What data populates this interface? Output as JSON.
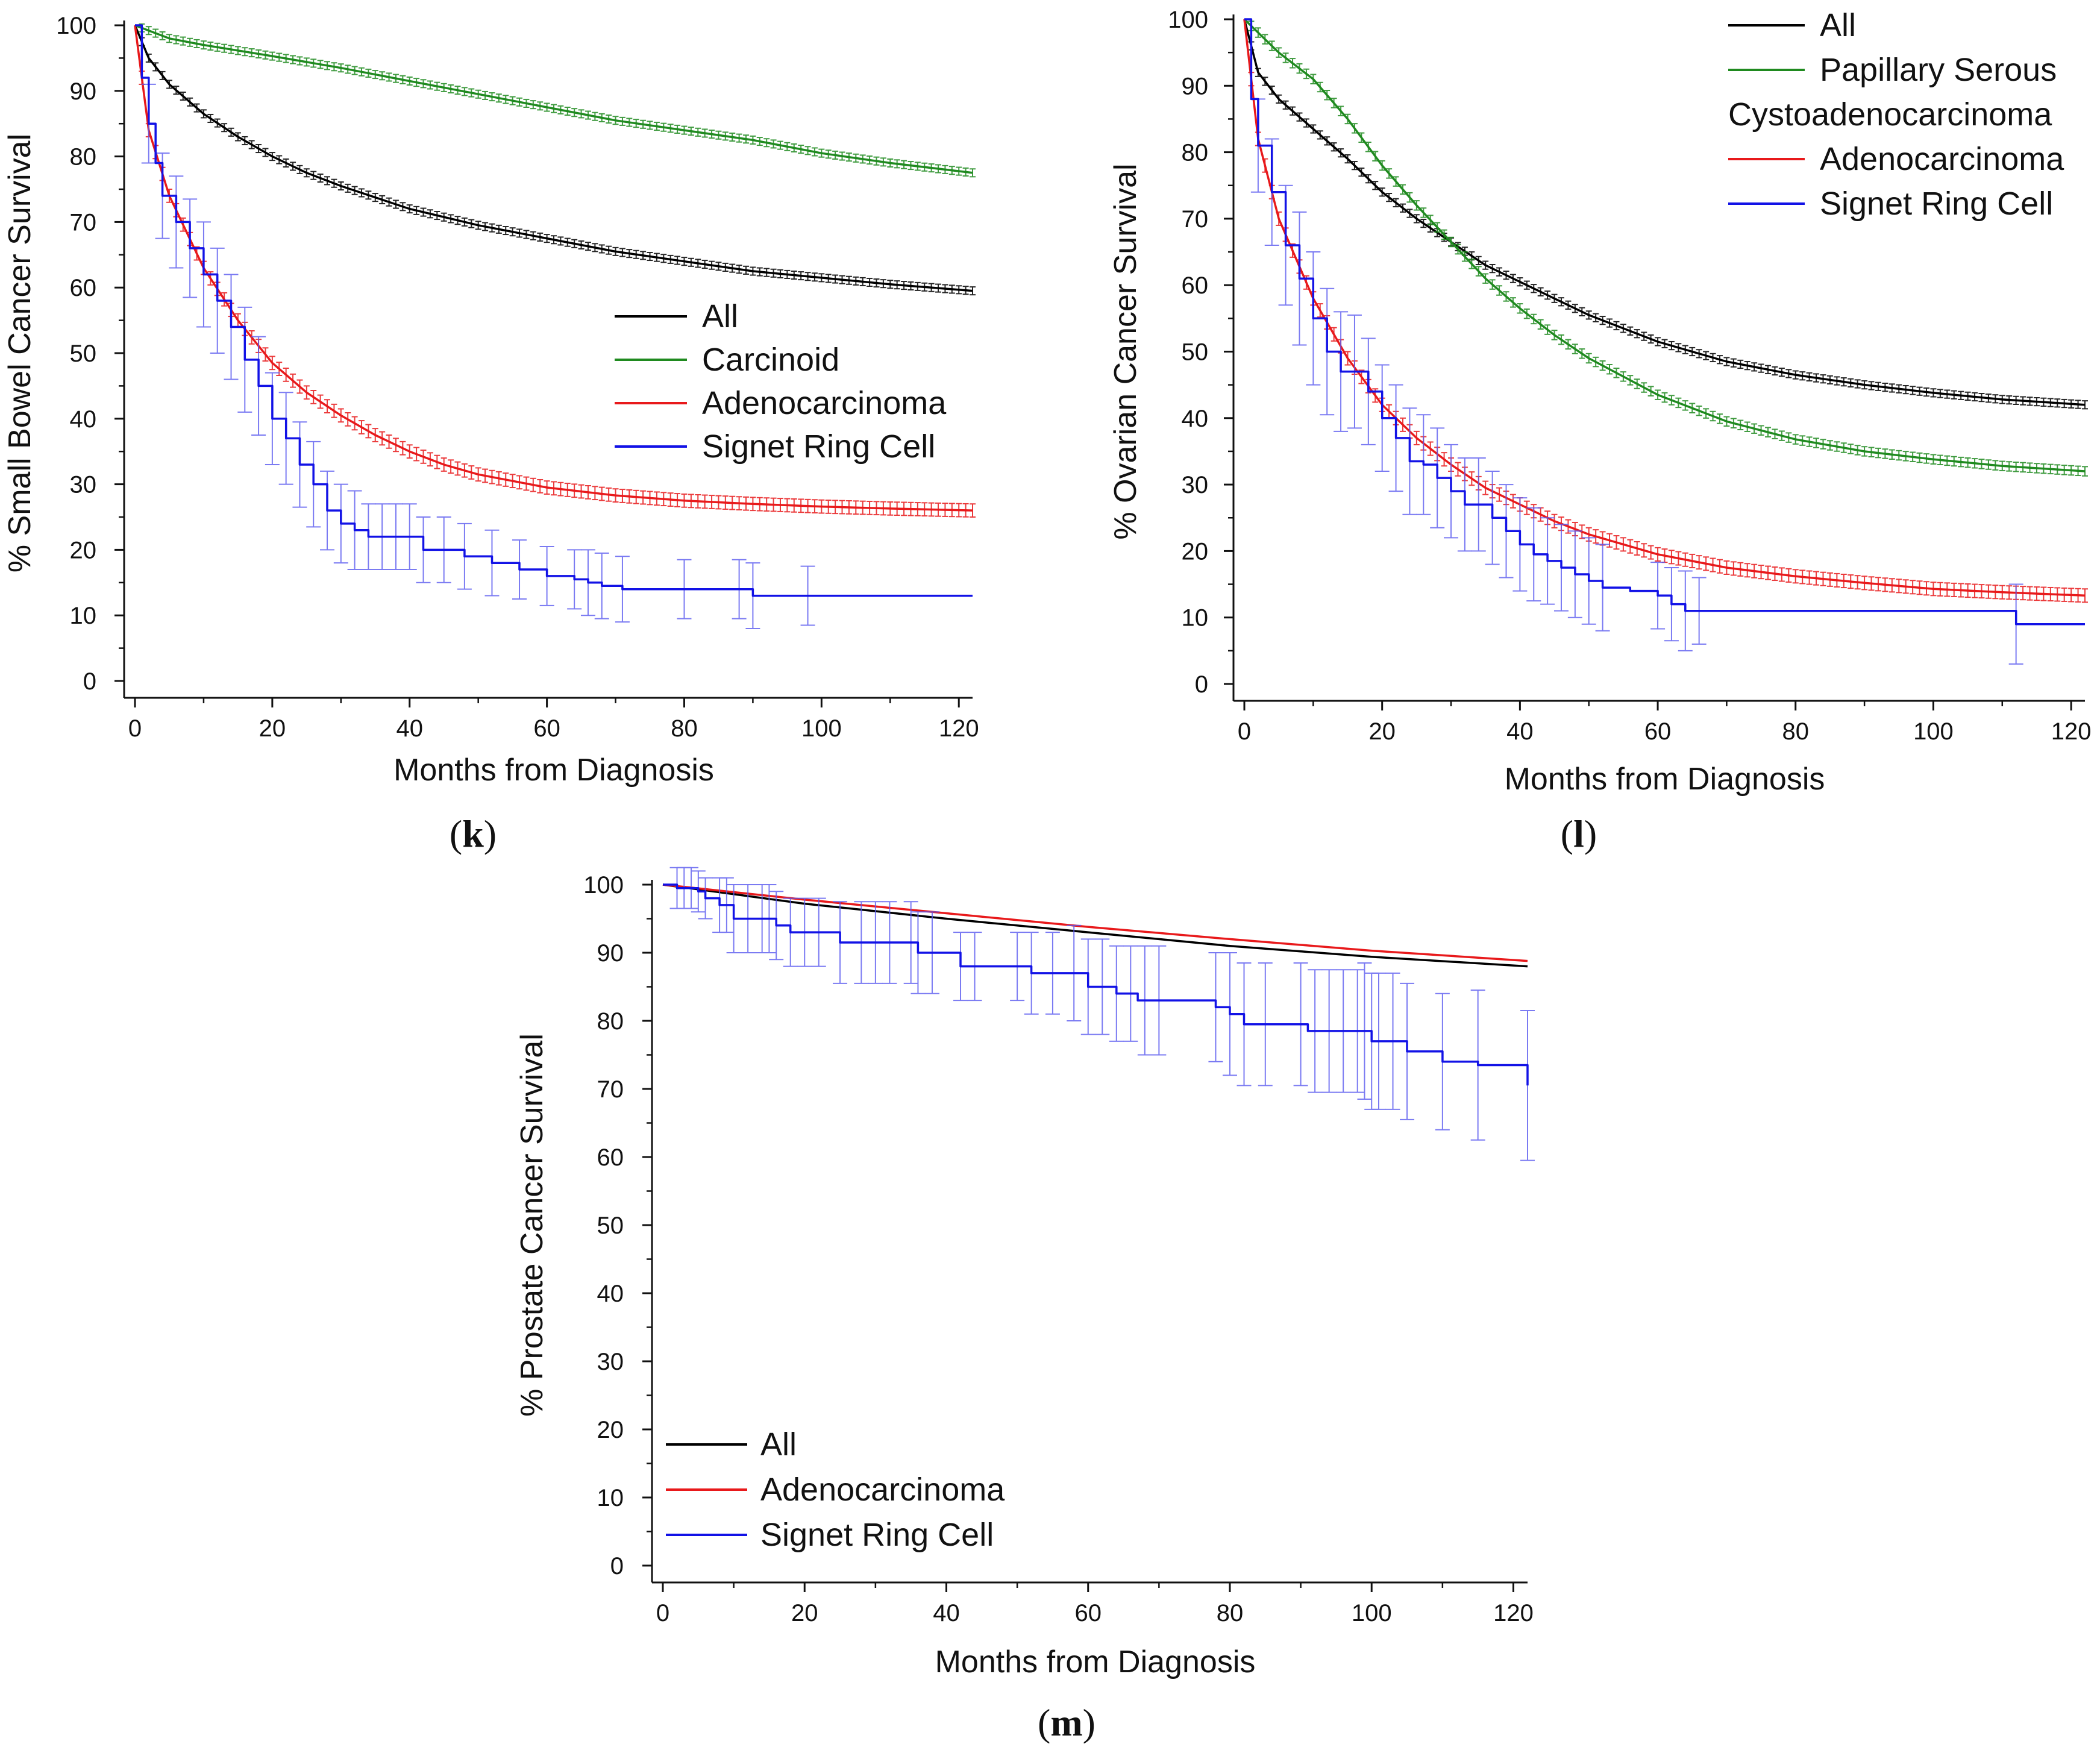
{
  "colors": {
    "All": "#000000",
    "Carcinoid": "#1f8a1f",
    "Papillary Serous Cystoadenocarcinoma": "#1f8a1f",
    "Adenocarcinoma": "#e8191b",
    "Signet Ring Cell": "#1212e6",
    "axis": "#111111"
  },
  "chart_data": [
    {
      "id": "k",
      "type": "line",
      "panel_label": "k",
      "title": "",
      "xlabel": "Months from Diagnosis",
      "ylabel": "% Small Bowel Cancer Survival",
      "xlim": [
        0,
        122
      ],
      "ylim": [
        0,
        100
      ],
      "xticks": [
        0,
        20,
        40,
        60,
        80,
        100,
        120
      ],
      "yticks": [
        0,
        10,
        20,
        30,
        40,
        50,
        60,
        70,
        80,
        90,
        100
      ],
      "legend_position": "center-right",
      "legend": [
        {
          "label": "All",
          "series": "All"
        },
        {
          "label": "Carcinoid",
          "series": "Carcinoid"
        },
        {
          "label": "Adenocarcinoma",
          "series": "Adenocarcinoma"
        },
        {
          "label": "Signet Ring Cell",
          "series": "Signet Ring Cell"
        }
      ],
      "series": [
        {
          "name": "All",
          "step": false,
          "err": 0.6,
          "x": [
            0,
            2,
            5,
            10,
            15,
            20,
            25,
            30,
            40,
            50,
            60,
            70,
            80,
            90,
            100,
            110,
            122
          ],
          "y": [
            100,
            95,
            91,
            86.5,
            83,
            80,
            77.5,
            75.5,
            72,
            69.5,
            67.5,
            65.5,
            64,
            62.5,
            61.5,
            60.5,
            59.5
          ]
        },
        {
          "name": "Carcinoid",
          "step": false,
          "err": 0.6,
          "x": [
            0,
            5,
            10,
            20,
            30,
            40,
            50,
            60,
            70,
            80,
            90,
            100,
            110,
            122
          ],
          "y": [
            100,
            98,
            97,
            95.3,
            93.5,
            91.5,
            89.5,
            87.5,
            85.5,
            84,
            82.5,
            80.5,
            79,
            77.5
          ]
        },
        {
          "name": "Adenocarcinoma",
          "step": false,
          "err": 1.0,
          "x": [
            0,
            2,
            5,
            10,
            15,
            20,
            25,
            30,
            35,
            40,
            45,
            50,
            60,
            70,
            80,
            90,
            100,
            110,
            122
          ],
          "y": [
            100,
            84,
            74,
            63,
            55,
            48.5,
            44,
            40.5,
            37.5,
            35,
            33,
            31.5,
            29.5,
            28.3,
            27.5,
            27,
            26.6,
            26.3,
            26
          ]
        },
        {
          "name": "Signet Ring Cell",
          "step": true,
          "x": [
            0,
            1,
            2,
            3,
            4,
            6,
            8,
            10,
            12,
            14,
            16,
            18,
            20,
            22,
            24,
            26,
            28,
            30,
            32,
            34,
            36,
            40,
            42,
            45,
            48,
            52,
            56,
            60,
            64,
            66,
            68,
            71,
            75,
            80,
            85,
            89,
            90,
            95,
            100,
            122
          ],
          "y": [
            100,
            92,
            85,
            79,
            74,
            70,
            66,
            62,
            58,
            54,
            49,
            45,
            40,
            37,
            33,
            30,
            26,
            24,
            23,
            22,
            22,
            22,
            20,
            20,
            19,
            18,
            17,
            16,
            15.5,
            15,
            14.5,
            14,
            14,
            14,
            14,
            14,
            13,
            13,
            13,
            13
          ],
          "errx": [
            2,
            4,
            6,
            8,
            10,
            12,
            14,
            16,
            18,
            20,
            22,
            24,
            26,
            28,
            30,
            32,
            34,
            36,
            38,
            40,
            42,
            45,
            48,
            52,
            56,
            60,
            64,
            66,
            68,
            71,
            80,
            88,
            90,
            98
          ],
          "erre": [
            6,
            6.5,
            7,
            7.5,
            8,
            8,
            8,
            8,
            7.5,
            7,
            7,
            6.5,
            6.5,
            6,
            6,
            6,
            5,
            5,
            5,
            5,
            5,
            5,
            5,
            5,
            4.5,
            4.5,
            4.5,
            5,
            5,
            5,
            4.5,
            4.5,
            5,
            4.5
          ]
        }
      ]
    },
    {
      "id": "l",
      "type": "line",
      "panel_label": "l",
      "title": "",
      "xlabel": "Months from Diagnosis",
      "ylabel": "% Ovarian Cancer Survival",
      "xlim": [
        0,
        122
      ],
      "ylim": [
        0,
        100
      ],
      "xticks": [
        0,
        20,
        40,
        60,
        80,
        100,
        120
      ],
      "yticks": [
        0,
        10,
        20,
        30,
        40,
        50,
        60,
        70,
        80,
        90,
        100
      ],
      "legend_position": "top-right",
      "legend": [
        {
          "label": "All",
          "series": "All"
        },
        {
          "label": "Papillary Serous",
          "label2": "Cystoadenocarcinoma",
          "series": "Papillary Serous Cystoadenocarcinoma"
        },
        {
          "label": "Adenocarcinoma",
          "series": "Adenocarcinoma"
        },
        {
          "label": "Signet Ring Cell",
          "series": "Signet Ring Cell"
        }
      ],
      "series": [
        {
          "name": "All",
          "step": false,
          "err": 0.6,
          "x": [
            0,
            2,
            5,
            10,
            15,
            20,
            25,
            30,
            35,
            40,
            45,
            50,
            60,
            70,
            80,
            90,
            100,
            110,
            122
          ],
          "y": [
            100,
            92,
            88,
            83.5,
            79,
            74,
            70,
            66.5,
            63,
            60.5,
            58,
            55.5,
            51.5,
            48.5,
            46.5,
            45,
            43.8,
            42.8,
            42
          ]
        },
        {
          "name": "Papillary Serous Cystoadenocarcinoma",
          "step": false,
          "err": 0.7,
          "x": [
            0,
            2,
            5,
            10,
            15,
            20,
            25,
            30,
            35,
            40,
            45,
            50,
            60,
            70,
            80,
            90,
            100,
            110,
            122
          ],
          "y": [
            100,
            98,
            95,
            91,
            85,
            78,
            72,
            66.5,
            61,
            56.5,
            52.5,
            49,
            43.5,
            39.5,
            36.8,
            35,
            33.8,
            32.8,
            32
          ]
        },
        {
          "name": "Adenocarcinoma",
          "step": false,
          "err": 1.0,
          "x": [
            0,
            2,
            5,
            10,
            15,
            20,
            25,
            30,
            35,
            40,
            45,
            50,
            60,
            70,
            80,
            90,
            100,
            110,
            122
          ],
          "y": [
            100,
            82,
            70,
            58,
            49,
            42,
            37,
            33,
            29.5,
            27,
            24.5,
            22.5,
            19.5,
            17.5,
            16.2,
            15.2,
            14.3,
            13.8,
            13.3
          ]
        },
        {
          "name": "Signet Ring Cell",
          "step": true,
          "x": [
            0,
            1,
            2,
            4,
            6,
            8,
            10,
            12,
            14,
            18,
            20,
            22,
            24,
            26,
            28,
            30,
            32,
            34,
            36,
            38,
            40,
            42,
            44,
            46,
            48,
            50,
            52,
            56,
            60,
            62,
            64,
            66,
            112,
            122
          ],
          "y": [
            100,
            88,
            81,
            74,
            66,
            61,
            55,
            50,
            47,
            44,
            40,
            37,
            33.5,
            33,
            31,
            29,
            27,
            27,
            25,
            23,
            21,
            19.5,
            18.5,
            17.5,
            16.5,
            15.5,
            14.5,
            14,
            13.3,
            12,
            11,
            11,
            9,
            9
          ],
          "errx": [
            2,
            4,
            6,
            8,
            10,
            12,
            14,
            16,
            18,
            20,
            22,
            24,
            26,
            28,
            30,
            32,
            34,
            36,
            38,
            40,
            42,
            44,
            46,
            48,
            50,
            52,
            60,
            62,
            64,
            66,
            112
          ],
          "erre": [
            7,
            8,
            9,
            10,
            10,
            9.5,
            9,
            8.5,
            8,
            8,
            8,
            8,
            7.5,
            7.5,
            7,
            7,
            7,
            7,
            7,
            7,
            7,
            6.5,
            6.5,
            6.5,
            6.5,
            6.5,
            5,
            5.5,
            6,
            5,
            6
          ]
        }
      ]
    },
    {
      "id": "m",
      "type": "line",
      "panel_label": "m",
      "title": "",
      "xlabel": "Months from Diagnosis",
      "ylabel": "% Prostate Cancer Survival",
      "xlim": [
        0,
        122
      ],
      "ylim": [
        0,
        100
      ],
      "xticks": [
        0,
        20,
        40,
        60,
        80,
        100,
        120
      ],
      "yticks": [
        0,
        10,
        20,
        30,
        40,
        50,
        60,
        70,
        80,
        90,
        100
      ],
      "legend_position": "bottom-left",
      "legend": [
        {
          "label": "All",
          "series": "All"
        },
        {
          "label": "Adenocarcinoma",
          "series": "Adenocarcinoma"
        },
        {
          "label": "Signet Ring Cell",
          "series": "Signet Ring Cell"
        }
      ],
      "series": [
        {
          "name": "All",
          "step": false,
          "x": [
            0,
            20,
            40,
            60,
            80,
            100,
            122
          ],
          "y": [
            100,
            97.2,
            95,
            93,
            91,
            89.4,
            88
          ]
        },
        {
          "name": "Adenocarcinoma",
          "step": false,
          "x": [
            0,
            20,
            40,
            60,
            80,
            100,
            122
          ],
          "y": [
            100,
            97.8,
            95.8,
            93.8,
            92,
            90.3,
            88.8
          ]
        },
        {
          "name": "Signet Ring Cell",
          "step": true,
          "x": [
            0,
            2,
            5,
            6,
            8,
            10,
            15,
            16,
            18,
            20,
            25,
            30,
            35,
            36,
            39,
            42,
            50,
            52,
            59,
            60,
            62,
            64,
            67,
            70,
            78,
            80,
            82,
            90,
            91,
            98,
            100,
            105,
            110,
            115,
            122
          ],
          "y": [
            100,
            99.5,
            99,
            98,
            97,
            95,
            95,
            94,
            93,
            93,
            91.5,
            91.5,
            91.5,
            90,
            90,
            88,
            88,
            87,
            87,
            85,
            85,
            84,
            83,
            83,
            82,
            81,
            79.5,
            79.5,
            78.5,
            78.5,
            77,
            75.5,
            74,
            73.5,
            70.5
          ],
          "errx": [
            2,
            3,
            4,
            5,
            6,
            8,
            9,
            10,
            12,
            14,
            15,
            16,
            18,
            20,
            22,
            25,
            28,
            30,
            32,
            35,
            36,
            38,
            42,
            44,
            50,
            52,
            55,
            58,
            60,
            62,
            64,
            66,
            68,
            70,
            78,
            80,
            82,
            85,
            90,
            92,
            94,
            96,
            98,
            99,
            100,
            101,
            103,
            105,
            110,
            115,
            122
          ],
          "erre": [
            3,
            3,
            3,
            3,
            3,
            4,
            4,
            5,
            5,
            5,
            5,
            5,
            5,
            5,
            5,
            6,
            6,
            6,
            6,
            6,
            6,
            6,
            5,
            5,
            5,
            6,
            6,
            7,
            7,
            7,
            7,
            7,
            8,
            8,
            8,
            9,
            9,
            9,
            9,
            9,
            9,
            9,
            9,
            10,
            10,
            10,
            10,
            10,
            10,
            11,
            11
          ]
        }
      ]
    }
  ]
}
